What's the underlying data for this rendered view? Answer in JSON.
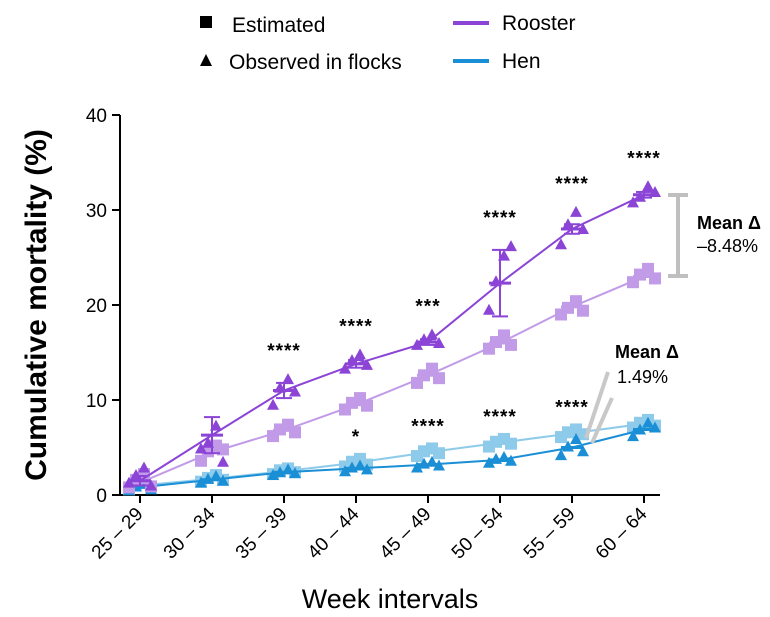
{
  "colors": {
    "rooster_obs": "#8b44d6",
    "rooster_est": "#c19be8",
    "hen_obs": "#1a8fd6",
    "hen_est": "#8ecbea",
    "axis": "#000000",
    "bracket": "#bfbfbf"
  },
  "legend": {
    "estimated": "Estimated",
    "observed": "Observed in flocks",
    "rooster": "Rooster",
    "hen": "Hen"
  },
  "annotations": {
    "rooster_mean_label": "Mean Δ",
    "rooster_mean_value": "–8.48%",
    "hen_mean_label": "Mean Δ",
    "hen_mean_value": "1.49%"
  },
  "chart_data": {
    "type": "line",
    "xlabel": "Week intervals",
    "ylabel": "Cumulative mortality (%)",
    "ylim": [
      0,
      40
    ],
    "yticks": [
      0,
      10,
      20,
      30,
      40
    ],
    "categories": [
      "25 – 29",
      "30 – 34",
      "35 – 39",
      "40 – 44",
      "45 – 49",
      "50 – 54",
      "55 – 59",
      "60 – 64"
    ],
    "series": [
      {
        "name": "Rooster observed",
        "key": "rooster_obs",
        "marker": "triangle",
        "means": [
          1.5,
          6.3,
          11.0,
          13.8,
          16.1,
          22.3,
          28.0,
          31.6
        ],
        "error": [
          0.5,
          1.9,
          0.8,
          0.4,
          0.3,
          3.5,
          0.5,
          0.3
        ],
        "points": [
          [
            1.3,
            2.1,
            2.9,
            1.0
          ],
          [
            4.9,
            5.5,
            7.3,
            3.5
          ],
          [
            9.5,
            11.3,
            12.2,
            10.9
          ],
          [
            13.3,
            14.2,
            14.8,
            13.7
          ],
          [
            15.8,
            16.4,
            16.9,
            16.0
          ],
          [
            19.5,
            22.5,
            25.2,
            26.2
          ],
          [
            26.4,
            28.5,
            29.8,
            28.0
          ],
          [
            30.8,
            31.4,
            32.5,
            31.9
          ]
        ]
      },
      {
        "name": "Rooster estimated",
        "key": "rooster_est",
        "marker": "square",
        "means": [
          1.3,
          4.5,
          6.8,
          9.5,
          12.6,
          16.0,
          19.8,
          23.0
        ],
        "points": [
          [
            0.8,
            1.6,
            2.2,
            0.9
          ],
          [
            3.6,
            4.6,
            5.2,
            4.8
          ],
          [
            6.2,
            6.9,
            7.4,
            6.6
          ],
          [
            9.0,
            9.7,
            10.2,
            9.4
          ],
          [
            11.8,
            12.6,
            13.3,
            12.3
          ],
          [
            15.4,
            16.1,
            16.8,
            15.8
          ],
          [
            19.0,
            19.7,
            20.4,
            19.4
          ],
          [
            22.4,
            23.2,
            23.8,
            22.8
          ]
        ]
      },
      {
        "name": "Hen observed",
        "key": "hen_obs",
        "marker": "triangle",
        "means": [
          0.8,
          1.6,
          2.4,
          2.8,
          3.2,
          3.7,
          5.0,
          6.9
        ],
        "points": [
          [
            0.5,
            0.9,
            1.2,
            0.6
          ],
          [
            1.3,
            1.7,
            2.0,
            1.5
          ],
          [
            2.1,
            2.4,
            2.7,
            2.3
          ],
          [
            2.5,
            2.9,
            3.1,
            2.7
          ],
          [
            2.9,
            3.3,
            3.5,
            3.1
          ],
          [
            3.4,
            3.8,
            4.0,
            3.6
          ],
          [
            4.2,
            5.1,
            5.9,
            4.6
          ],
          [
            6.2,
            6.9,
            7.6,
            7.1
          ]
        ]
      },
      {
        "name": "Hen estimated",
        "key": "hen_est",
        "marker": "square",
        "means": [
          1.0,
          1.7,
          2.5,
          3.4,
          4.5,
          5.5,
          6.5,
          7.5
        ],
        "points": [
          [
            0.6,
            1.2,
            1.6,
            0.9
          ],
          [
            1.4,
            1.8,
            2.1,
            1.6
          ],
          [
            2.2,
            2.6,
            2.8,
            2.4
          ],
          [
            3.0,
            3.5,
            3.8,
            3.2
          ],
          [
            4.1,
            4.6,
            4.9,
            4.4
          ],
          [
            5.1,
            5.6,
            5.9,
            5.4
          ],
          [
            6.1,
            6.6,
            6.9,
            6.4
          ],
          [
            7.1,
            7.6,
            7.9,
            7.3
          ]
        ]
      }
    ],
    "significance_rooster": [
      "",
      "",
      "****",
      "****",
      "***",
      "****",
      "****",
      "****"
    ],
    "significance_hen": [
      "",
      "",
      "",
      "*",
      "****",
      "****",
      "****",
      ""
    ]
  }
}
